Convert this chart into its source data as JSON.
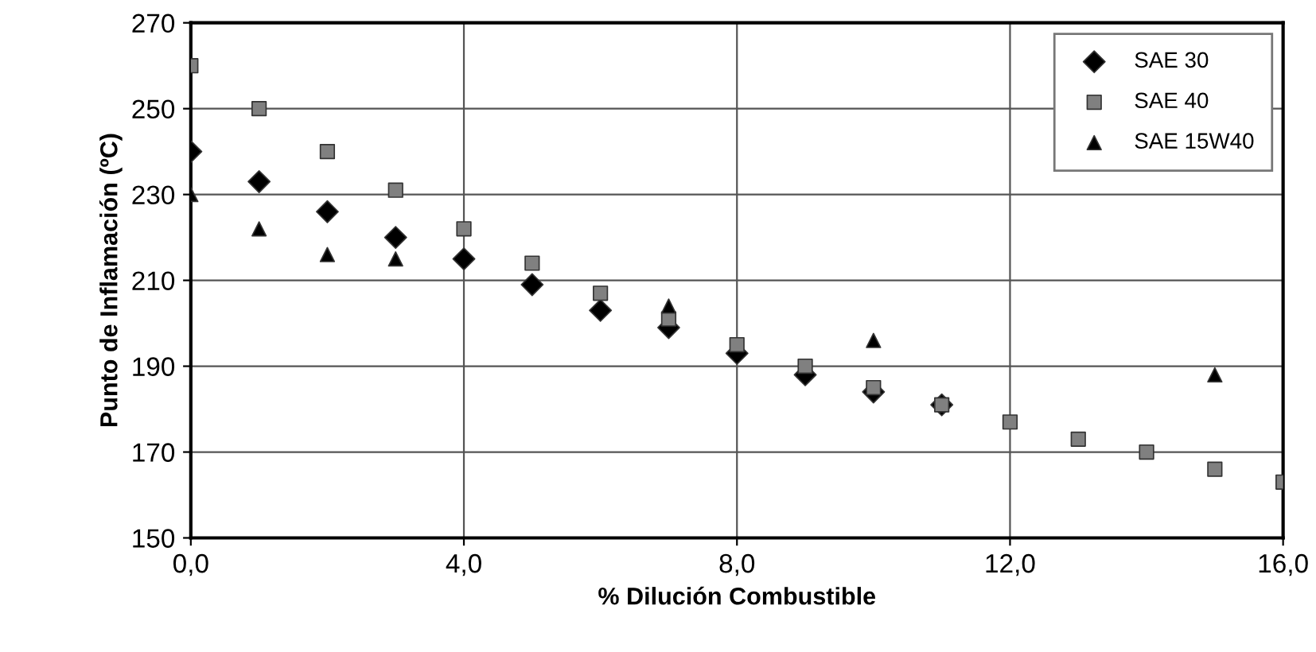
{
  "chart_data": {
    "type": "scatter",
    "xlabel": "% Dilución Combustible",
    "ylabel": "Punto de Inflamación (ºC)",
    "xlim": [
      0,
      16
    ],
    "xticks": [
      {
        "value": 0,
        "label": "0,0"
      },
      {
        "value": 4,
        "label": "4,0"
      },
      {
        "value": 8,
        "label": "8,0"
      },
      {
        "value": 12,
        "label": "12,0"
      },
      {
        "value": 16,
        "label": "16,0"
      }
    ],
    "ylim": [
      150,
      270
    ],
    "yticks": [
      150,
      170,
      190,
      210,
      230,
      250,
      270
    ],
    "grid": true,
    "legend": "top right",
    "series": [
      {
        "name": "SAE 30",
        "color": "#000000",
        "marker": "diamond",
        "x": [
          0,
          1,
          2,
          3,
          4,
          5,
          6,
          7,
          8,
          9,
          10,
          11
        ],
        "values": [
          240,
          233,
          226,
          220,
          215,
          209,
          203,
          199,
          193,
          188,
          184,
          181
        ]
      },
      {
        "name": "SAE 40",
        "color": "#808080",
        "marker": "square",
        "x": [
          0,
          1,
          2,
          3,
          4,
          5,
          6,
          7,
          8,
          9,
          10,
          11,
          12,
          13,
          14,
          15,
          16
        ],
        "values": [
          260,
          250,
          240,
          231,
          222,
          214,
          207,
          201,
          195,
          190,
          185,
          181,
          177,
          173,
          170,
          166,
          163
        ]
      },
      {
        "name": "SAE 15W40",
        "color": "#000000",
        "marker": "triangle",
        "x": [
          0,
          1,
          2,
          3,
          7,
          10,
          15
        ],
        "values": [
          230,
          222,
          216,
          215,
          204,
          196,
          188
        ]
      }
    ]
  }
}
